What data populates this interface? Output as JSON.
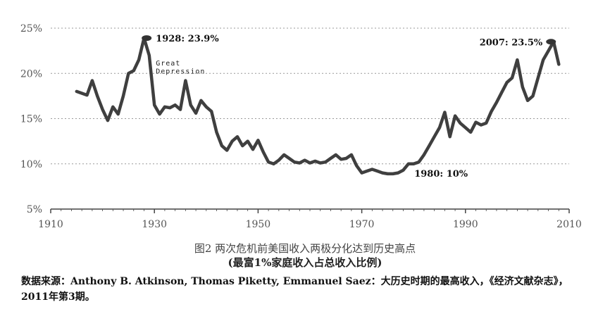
{
  "chart_data": {
    "type": "line",
    "x": [
      1915,
      1916,
      1917,
      1918,
      1919,
      1920,
      1921,
      1922,
      1923,
      1924,
      1925,
      1926,
      1927,
      1928,
      1929,
      1930,
      1931,
      1932,
      1933,
      1934,
      1935,
      1936,
      1937,
      1938,
      1939,
      1940,
      1941,
      1942,
      1943,
      1944,
      1945,
      1946,
      1947,
      1948,
      1949,
      1950,
      1951,
      1952,
      1953,
      1954,
      1955,
      1956,
      1957,
      1958,
      1959,
      1960,
      1961,
      1962,
      1963,
      1964,
      1965,
      1966,
      1967,
      1968,
      1969,
      1970,
      1971,
      1972,
      1973,
      1974,
      1975,
      1976,
      1977,
      1978,
      1979,
      1980,
      1981,
      1982,
      1983,
      1984,
      1985,
      1986,
      1987,
      1988,
      1989,
      1990,
      1991,
      1992,
      1993,
      1994,
      1995,
      1996,
      1997,
      1998,
      1999,
      2000,
      2001,
      2002,
      2003,
      2004,
      2005,
      2006,
      2007,
      2008
    ],
    "series": [
      {
        "values": [
          18.0,
          17.8,
          17.6,
          19.2,
          17.5,
          16.0,
          14.8,
          16.3,
          15.5,
          17.5,
          20.0,
          20.3,
          21.5,
          23.9,
          22.0,
          16.5,
          15.5,
          16.3,
          16.2,
          16.5,
          16.0,
          19.2,
          16.5,
          15.6,
          17.0,
          16.3,
          15.8,
          13.5,
          12.0,
          11.5,
          12.5,
          13.0,
          12.0,
          12.5,
          11.6,
          12.6,
          11.3,
          10.2,
          10.0,
          10.4,
          11.0,
          10.6,
          10.2,
          10.1,
          10.4,
          10.1,
          10.3,
          10.1,
          10.2,
          10.6,
          11.0,
          10.5,
          10.6,
          11.0,
          9.8,
          9.0,
          9.2,
          9.4,
          9.2,
          9.0,
          8.9,
          8.9,
          9.0,
          9.3,
          10.0,
          10.0,
          10.2,
          11.0,
          12.0,
          13.0,
          14.0,
          15.7,
          13.0,
          15.3,
          14.5,
          14.0,
          13.5,
          14.6,
          14.3,
          14.5,
          15.8,
          16.8,
          17.9,
          19.0,
          19.5,
          21.5,
          18.5,
          17.0,
          17.5,
          19.5,
          21.5,
          22.5,
          23.5,
          21.0
        ]
      }
    ],
    "xlim": [
      1910,
      2010
    ],
    "ylim": [
      5,
      25
    ],
    "xticks": [
      "1910",
      "1930",
      "1950",
      "1970",
      "1990",
      "2010"
    ],
    "yticks": [
      "5%",
      "10%",
      "15%",
      "20%",
      "25%"
    ],
    "grid": "horizontal dotted",
    "annotations": [
      {
        "text": "1928: 23.9%",
        "x": 1928.5,
        "y": 23.9
      },
      {
        "text": "Great",
        "x": 1930,
        "y": 21.2
      },
      {
        "text": "Depression",
        "x": 1930,
        "y": 20.3
      },
      {
        "text": "1980: 10%",
        "x": 1980,
        "y": 10.0
      },
      {
        "text": "2007: 23.5%",
        "x": 2006.5,
        "y": 23.5
      }
    ],
    "title": "图2  两次危机前美国收入两极分化达到历史高点",
    "subtitle": "(最富1%家庭收入占总收入比例)"
  },
  "source_note": "数据来源：Anthony B. Atkinson, Thomas Piketty, Emmanuel Saez：大历史时期的最高收入，《经济文献杂志》，2011年第3期。",
  "colors": {
    "line": "#3f3f3f",
    "grid": "#999999",
    "axis": "#444444"
  }
}
